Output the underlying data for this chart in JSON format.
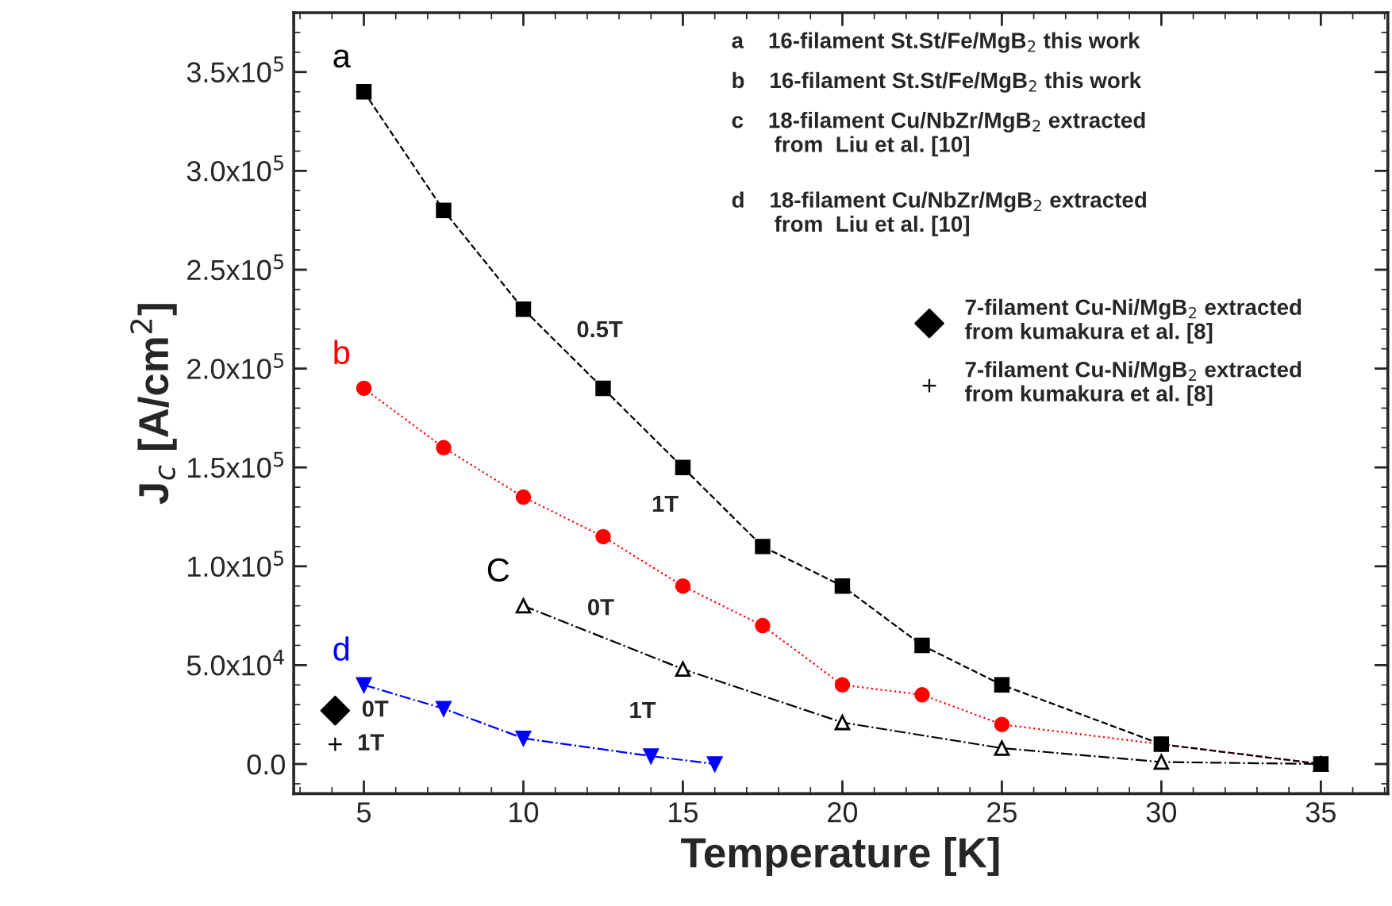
{
  "chart_data": {
    "type": "line",
    "xlabel": "Temperature [K]",
    "ylabel": "J$_{c}$ [A/cm$^{2}$]",
    "xlim": [
      2.8,
      37.1
    ],
    "xticks": [
      5,
      10,
      15,
      20,
      25,
      30,
      35
    ],
    "ylim": [
      -15000,
      380000
    ],
    "yticks": [
      {
        "value": 0,
        "label": "0.0"
      },
      {
        "value": 50000,
        "label": "5.0x10$^{4}$"
      },
      {
        "value": 100000,
        "label": "1.0x10$^{5}$"
      },
      {
        "value": 150000,
        "label": "1.5x10$^{5}$"
      },
      {
        "value": 200000,
        "label": "2.0x10$^{5}$"
      },
      {
        "value": 250000,
        "label": "2.5x10$^{5}$"
      },
      {
        "value": 300000,
        "label": "3.0x10$^{5}$"
      },
      {
        "value": 350000,
        "label": "3.5x10$^{5}$"
      }
    ],
    "grid": false,
    "legend": "top right",
    "series": [
      {
        "name": "a",
        "color": "#000000",
        "marker": "square",
        "line_style": "dashed",
        "x": [
          5,
          7.5,
          10,
          12.5,
          15,
          17.5,
          20,
          22.5,
          25,
          30,
          35
        ],
        "values": [
          340000,
          280000,
          230000,
          190000,
          150000,
          110000,
          90000,
          60000,
          40000,
          10000,
          0
        ]
      },
      {
        "name": "b",
        "color": "#ff0000",
        "marker": "circle",
        "line_style": "dotted",
        "x": [
          5,
          7.5,
          10,
          12.5,
          15,
          17.5,
          20,
          22.5,
          25,
          30,
          35
        ],
        "values": [
          190000,
          160000,
          135000,
          115000,
          90000,
          70000,
          40000,
          35000,
          20000,
          10000,
          0
        ]
      },
      {
        "name": "C",
        "color": "#000000",
        "marker": "triangle",
        "line_style": "dashdot",
        "x": [
          10,
          15,
          20,
          25,
          30,
          35
        ],
        "values": [
          80000,
          48000,
          21000,
          8000,
          1000,
          0
        ]
      },
      {
        "name": "d",
        "color": "#0000ff",
        "marker": "triangle_down",
        "line_style": "dashdot",
        "x": [
          5,
          7.5,
          10,
          14,
          16
        ],
        "values": [
          40000,
          28000,
          13000,
          4000,
          0
        ]
      },
      {
        "name": "7-filament Cu-Ni/MgB$_{2}$ extracted\nfrom kumakura et al. [8]",
        "type": "scatter",
        "color": "#000000",
        "marker": "diamond",
        "x": [
          4.1
        ],
        "values": [
          27000
        ]
      },
      {
        "name": "7-filament Cu-Ni/MgB$_{2}$ extracted\nfrom kumakura et al. [8]",
        "type": "scatter",
        "color": "#000000",
        "marker": "cross",
        "x": [
          4.1
        ],
        "values": [
          10000
        ]
      }
    ],
    "annotations": [
      "a    16-filament St.St/Fe/MgB$_{2}$ this work",
      "b    16-filament St.St/Fe/MgB$_{2}$ this work",
      "c    18-filament Cu/NbZr/MgB$_{2}$ extracted\n       from  Liu et al. [10]",
      "d    18-filament Cu/NbZr/MgB$_{2}$ extracted\n       from  Liu et al. [10]",
      {
        "text": "0.5T",
        "x": 11.25,
        "y": 210000
      },
      {
        "text": "1T",
        "x": 12.5,
        "y": 115000
      },
      {
        "text": "0T",
        "x": 12,
        "y": 67200
      },
      {
        "text": "1T",
        "x": 14,
        "y": 4000
      },
      {
        "text": "0T",
        "x": 4.1,
        "y": 27000
      },
      {
        "text": "1T",
        "x": 4.1,
        "y": 10000
      }
    ]
  }
}
